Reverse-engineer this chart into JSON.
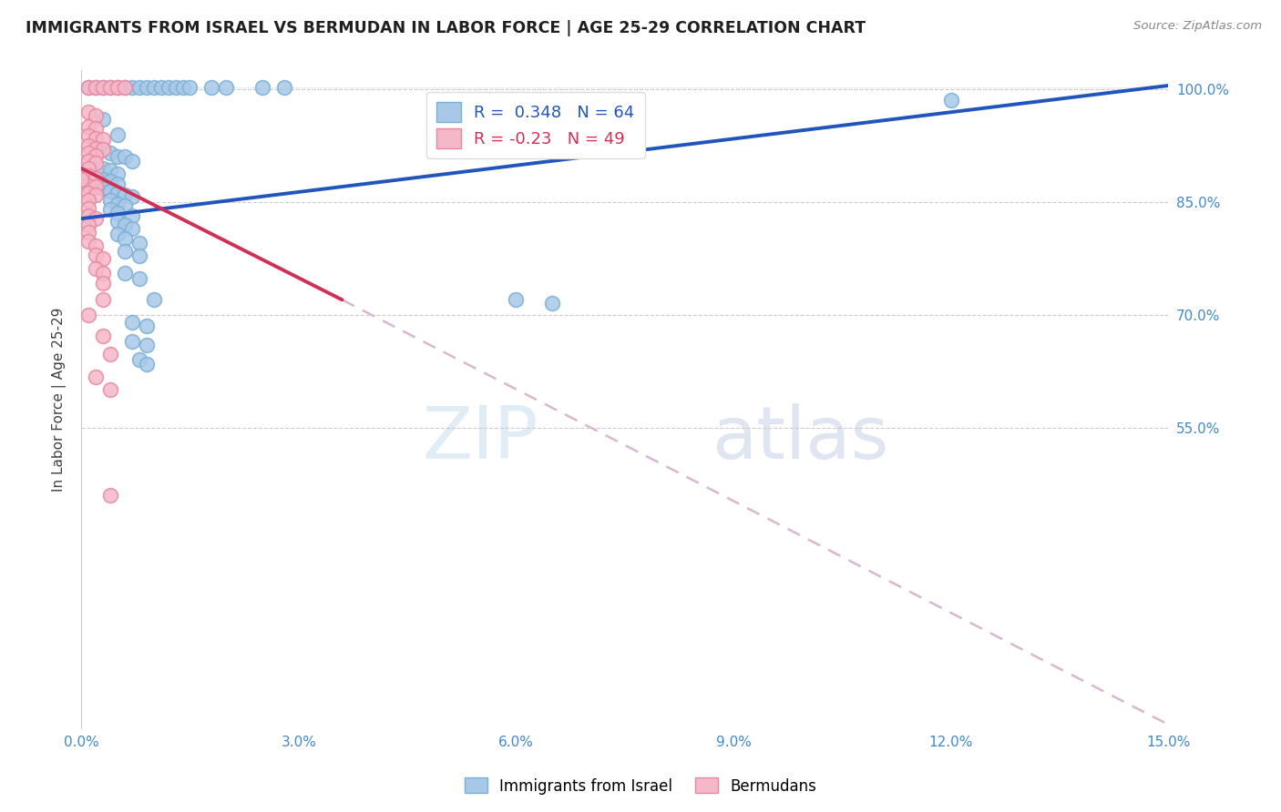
{
  "title": "IMMIGRANTS FROM ISRAEL VS BERMUDAN IN LABOR FORCE | AGE 25-29 CORRELATION CHART",
  "source": "Source: ZipAtlas.com",
  "ylabel": "In Labor Force | Age 25-29",
  "r_israel": 0.348,
  "n_israel": 64,
  "r_bermudan": -0.23,
  "n_bermudan": 49,
  "xlim": [
    0.0,
    0.15
  ],
  "ylim": [
    0.15,
    1.025
  ],
  "xticks": [
    0.0,
    0.03,
    0.06,
    0.09,
    0.12,
    0.15
  ],
  "xticklabels": [
    "0.0%",
    "3.0%",
    "6.0%",
    "9.0%",
    "12.0%",
    "15.0%"
  ],
  "yticks": [
    0.55,
    0.7,
    0.85,
    1.0
  ],
  "yticklabels": [
    "55.0%",
    "70.0%",
    "85.0%",
    "100.0%"
  ],
  "israel_color": "#a8c8e8",
  "israel_edge_color": "#7bafd4",
  "bermudan_color": "#f5b8c8",
  "bermudan_edge_color": "#e888a0",
  "israel_line_color": "#2255bb",
  "bermudan_line_color": "#d03055",
  "bermudan_dash_color": "#d8b8d0",
  "watermark_color": "#deeaf5",
  "israel_line": [
    0.0,
    0.828,
    0.15,
    1.005
  ],
  "bermudan_line_solid": [
    0.0,
    0.895,
    0.036,
    0.72
  ],
  "bermudan_line_dash": [
    0.036,
    0.72,
    0.15,
    0.155
  ],
  "legend_israel_label": "Immigrants from Israel",
  "legend_bermudan_label": "Bermudans",
  "israel_scatter": [
    [
      0.001,
      1.003
    ],
    [
      0.002,
      1.003
    ],
    [
      0.003,
      1.003
    ],
    [
      0.004,
      1.003
    ],
    [
      0.005,
      1.003
    ],
    [
      0.006,
      1.003
    ],
    [
      0.007,
      1.003
    ],
    [
      0.008,
      1.003
    ],
    [
      0.009,
      1.003
    ],
    [
      0.01,
      1.003
    ],
    [
      0.011,
      1.003
    ],
    [
      0.012,
      1.003
    ],
    [
      0.013,
      1.003
    ],
    [
      0.014,
      1.003
    ],
    [
      0.015,
      1.003
    ],
    [
      0.018,
      1.003
    ],
    [
      0.02,
      1.003
    ],
    [
      0.025,
      1.003
    ],
    [
      0.028,
      1.003
    ],
    [
      0.003,
      0.96
    ],
    [
      0.005,
      0.94
    ],
    [
      0.003,
      0.92
    ],
    [
      0.004,
      0.915
    ],
    [
      0.005,
      0.91
    ],
    [
      0.006,
      0.91
    ],
    [
      0.007,
      0.905
    ],
    [
      0.003,
      0.895
    ],
    [
      0.004,
      0.892
    ],
    [
      0.005,
      0.888
    ],
    [
      0.003,
      0.88
    ],
    [
      0.004,
      0.878
    ],
    [
      0.005,
      0.874
    ],
    [
      0.003,
      0.868
    ],
    [
      0.004,
      0.865
    ],
    [
      0.005,
      0.862
    ],
    [
      0.006,
      0.86
    ],
    [
      0.007,
      0.857
    ],
    [
      0.004,
      0.852
    ],
    [
      0.005,
      0.848
    ],
    [
      0.006,
      0.845
    ],
    [
      0.004,
      0.84
    ],
    [
      0.005,
      0.836
    ],
    [
      0.007,
      0.832
    ],
    [
      0.005,
      0.825
    ],
    [
      0.006,
      0.82
    ],
    [
      0.007,
      0.815
    ],
    [
      0.005,
      0.808
    ],
    [
      0.006,
      0.802
    ],
    [
      0.008,
      0.795
    ],
    [
      0.006,
      0.785
    ],
    [
      0.008,
      0.778
    ],
    [
      0.006,
      0.755
    ],
    [
      0.008,
      0.748
    ],
    [
      0.01,
      0.72
    ],
    [
      0.007,
      0.69
    ],
    [
      0.009,
      0.685
    ],
    [
      0.007,
      0.665
    ],
    [
      0.009,
      0.66
    ],
    [
      0.008,
      0.64
    ],
    [
      0.009,
      0.635
    ],
    [
      0.06,
      0.72
    ],
    [
      0.065,
      0.715
    ],
    [
      0.12,
      0.985
    ]
  ],
  "bermudan_scatter": [
    [
      0.001,
      1.003
    ],
    [
      0.002,
      1.003
    ],
    [
      0.003,
      1.003
    ],
    [
      0.004,
      1.003
    ],
    [
      0.005,
      1.003
    ],
    [
      0.006,
      1.003
    ],
    [
      0.001,
      0.97
    ],
    [
      0.002,
      0.965
    ],
    [
      0.001,
      0.95
    ],
    [
      0.002,
      0.948
    ],
    [
      0.001,
      0.938
    ],
    [
      0.002,
      0.935
    ],
    [
      0.003,
      0.933
    ],
    [
      0.001,
      0.925
    ],
    [
      0.002,
      0.922
    ],
    [
      0.003,
      0.92
    ],
    [
      0.001,
      0.915
    ],
    [
      0.002,
      0.912
    ],
    [
      0.001,
      0.905
    ],
    [
      0.002,
      0.902
    ],
    [
      0.001,
      0.895
    ],
    [
      0.001,
      0.885
    ],
    [
      0.002,
      0.882
    ],
    [
      0.001,
      0.872
    ],
    [
      0.002,
      0.87
    ],
    [
      0.001,
      0.862
    ],
    [
      0.002,
      0.86
    ],
    [
      0.001,
      0.852
    ],
    [
      0.001,
      0.842
    ],
    [
      0.001,
      0.832
    ],
    [
      0.002,
      0.828
    ],
    [
      0.001,
      0.82
    ],
    [
      0.001,
      0.81
    ],
    [
      0.001,
      0.798
    ],
    [
      0.002,
      0.792
    ],
    [
      0.002,
      0.78
    ],
    [
      0.003,
      0.775
    ],
    [
      0.002,
      0.762
    ],
    [
      0.003,
      0.755
    ],
    [
      0.003,
      0.742
    ],
    [
      0.003,
      0.72
    ],
    [
      0.001,
      0.7
    ],
    [
      0.003,
      0.672
    ],
    [
      0.004,
      0.648
    ],
    [
      0.002,
      0.618
    ],
    [
      0.004,
      0.6
    ],
    [
      0.004,
      0.46
    ],
    [
      0.0,
      0.88
    ]
  ]
}
